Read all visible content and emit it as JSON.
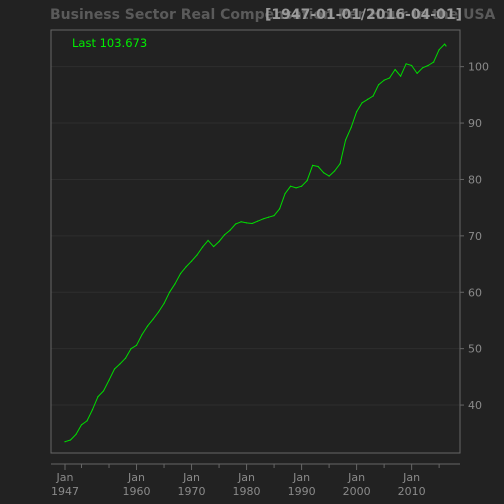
{
  "chart_data": {
    "type": "line",
    "title": "Business Sector Real Compensation Per Hour in the USA",
    "date_range_label": "[1947-01-01/2016-04-01]",
    "last_value_label": "Last 103.673",
    "series": [
      {
        "color": "#00dd00",
        "x": [
          "1947-01-01",
          "1948-01-01",
          "1949-01-01",
          "1950-01-01",
          "1951-01-01",
          "1952-01-01",
          "1953-01-01",
          "1954-01-01",
          "1955-01-01",
          "1956-01-01",
          "1957-01-01",
          "1958-01-01",
          "1959-01-01",
          "1960-01-01",
          "1961-01-01",
          "1962-01-01",
          "1963-01-01",
          "1964-01-01",
          "1965-01-01",
          "1966-01-01",
          "1967-01-01",
          "1968-01-01",
          "1969-01-01",
          "1970-01-01",
          "1971-01-01",
          "1972-01-01",
          "1973-01-01",
          "1974-01-01",
          "1975-01-01",
          "1976-01-01",
          "1977-01-01",
          "1978-01-01",
          "1979-01-01",
          "1980-01-01",
          "1981-01-01",
          "1982-01-01",
          "1983-01-01",
          "1984-01-01",
          "1985-01-01",
          "1986-01-01",
          "1987-01-01",
          "1988-01-01",
          "1989-01-01",
          "1990-01-01",
          "1991-01-01",
          "1992-01-01",
          "1993-01-01",
          "1994-01-01",
          "1995-01-01",
          "1996-01-01",
          "1997-01-01",
          "1998-01-01",
          "1999-01-01",
          "2000-01-01",
          "2001-01-01",
          "2002-01-01",
          "2003-01-01",
          "2004-01-01",
          "2005-01-01",
          "2006-01-01",
          "2007-01-01",
          "2008-01-01",
          "2009-01-01",
          "2010-01-01",
          "2011-01-01",
          "2012-01-01",
          "2013-01-01",
          "2014-01-01",
          "2015-01-01",
          "2016-01-01",
          "2016-04-01"
        ],
        "values": [
          33.5,
          33.8,
          34.8,
          36.5,
          37.2,
          39.2,
          41.5,
          42.5,
          44.4,
          46.4,
          47.3,
          48.3,
          50.0,
          50.6,
          52.5,
          54.0,
          55.2,
          56.5,
          58.0,
          60.0,
          61.5,
          63.3,
          64.5,
          65.5,
          66.6,
          68.0,
          69.2,
          68.1,
          69.0,
          70.2,
          71.0,
          72.1,
          72.5,
          72.3,
          72.2,
          72.6,
          73.0,
          73.3,
          73.6,
          74.8,
          77.5,
          78.8,
          78.5,
          78.8,
          79.8,
          82.5,
          82.3,
          81.2,
          80.6,
          81.5,
          82.8,
          87.0,
          89.2,
          92.0,
          93.6,
          94.2,
          94.8,
          96.8,
          97.6,
          98.0,
          99.5,
          98.3,
          100.5,
          100.2,
          98.8,
          99.8,
          100.2,
          100.8,
          103.0,
          104.0,
          103.673
        ]
      }
    ],
    "x_ticks": [
      {
        "line1": "Jan",
        "line2": "1947",
        "date": "1947-01-01"
      },
      {
        "line1": "Jan",
        "line2": "1960",
        "date": "1960-01-01"
      },
      {
        "line1": "Jan",
        "line2": "1970",
        "date": "1970-01-01"
      },
      {
        "line1": "Jan",
        "line2": "1980",
        "date": "1980-01-01"
      },
      {
        "line1": "Jan",
        "line2": "1990",
        "date": "1990-01-01"
      },
      {
        "line1": "Jan",
        "line2": "2000",
        "date": "2000-01-01"
      },
      {
        "line1": "Jan",
        "line2": "2010",
        "date": "2010-01-01"
      }
    ],
    "minor_x_ticks": [
      "1950-01-01",
      "1955-01-01",
      "1965-01-01",
      "1975-01-01",
      "1985-01-01",
      "1995-01-01",
      "2005-01-01",
      "2015-01-01"
    ],
    "y_ticks": [
      40,
      50,
      60,
      70,
      80,
      90,
      100
    ],
    "xlim": [
      "1947-01-01",
      "2016-04-01"
    ],
    "ylim": [
      31.5,
      106.5
    ],
    "grid": true,
    "colors": {
      "background": "#222222",
      "line": "#00dd00",
      "grid": "#2e2e2e",
      "frame": "#666666",
      "ticks": "#8a8a8a"
    }
  }
}
